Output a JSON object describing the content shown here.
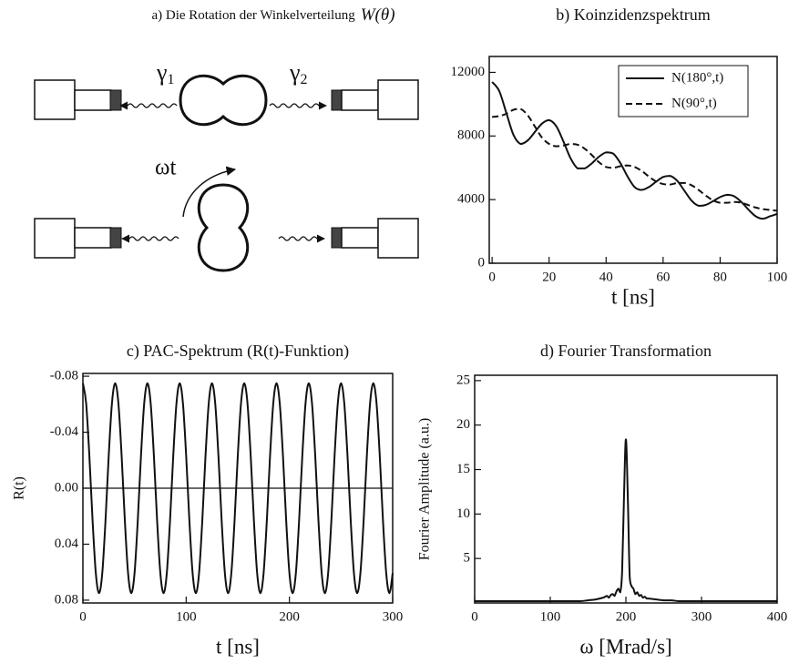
{
  "diagram": {
    "title": "a) Die Rotation der Winkelverteilung",
    "title_symbol": "W(θ)",
    "gamma_left": {
      "symbol": "γ",
      "subscript": "1"
    },
    "gamma_right": {
      "symbol": "γ",
      "subscript": "2"
    },
    "rotation_label": "ωt"
  },
  "chart_data": [
    {
      "type": "line",
      "title": "b) Koinzidenzspektrum",
      "xlabel": "t [ns]",
      "x": [
        0,
        2.5,
        5,
        7.5,
        10,
        12.5,
        15,
        17.5,
        20,
        22.5,
        25,
        27.5,
        30,
        32.5,
        35,
        37.5,
        40,
        42.5,
        45,
        47.5,
        50,
        52.5,
        55,
        57.5,
        60,
        62.5,
        65,
        67.5,
        70,
        72.5,
        75,
        77.5,
        80,
        82.5,
        85,
        87.5,
        90,
        92.5,
        95,
        97.5,
        100
      ],
      "series": [
        {
          "name": "N(180°,t)",
          "color": "#111111",
          "dash": "solid",
          "values": [
            11400,
            10830,
            9450,
            8070,
            7500,
            7720,
            8250,
            8780,
            9000,
            8620,
            7670,
            6610,
            5960,
            5960,
            6280,
            6700,
            6970,
            6890,
            6300,
            5460,
            4790,
            4610,
            4790,
            5120,
            5420,
            5490,
            5170,
            4550,
            3930,
            3610,
            3670,
            3900,
            4160,
            4300,
            4200,
            3840,
            3360,
            2950,
            2800,
            2950,
            3100
          ]
        },
        {
          "name": "N(90°,t)",
          "color": "#111111",
          "dash": "dashed",
          "values": [
            9200,
            9250,
            9400,
            9650,
            9700,
            9300,
            8600,
            7900,
            7500,
            7350,
            7400,
            7500,
            7450,
            7200,
            6800,
            6350,
            6050,
            6000,
            6100,
            6150,
            6050,
            5800,
            5450,
            5150,
            4980,
            4950,
            5050,
            5050,
            4900,
            4600,
            4250,
            3950,
            3800,
            3800,
            3850,
            3800,
            3650,
            3500,
            3400,
            3350,
            3300
          ]
        }
      ],
      "xlim": [
        -1,
        100
      ],
      "ylim": [
        0,
        13000
      ],
      "xticks": [
        0,
        20,
        40,
        60,
        80,
        100
      ],
      "yticks": [
        0,
        4000,
        8000,
        12000
      ],
      "legend": "upper right"
    },
    {
      "type": "line",
      "title": "c) PAC-Spektrum (R(t)-Funktion)",
      "xlabel": "t [ns]",
      "ylabel": "R(t)",
      "x": [
        0,
        3.125,
        6.25,
        9.375,
        12.5,
        15.625,
        18.75,
        21.875,
        25,
        28.125,
        31.25,
        34.375,
        37.5,
        40.625,
        43.75,
        46.875,
        50,
        53.125,
        56.25,
        59.375,
        62.5,
        65.625,
        68.75,
        71.875,
        75,
        78.125,
        81.25,
        84.375,
        87.5,
        90.625,
        93.75,
        96.875,
        100,
        103.125,
        106.25,
        109.375,
        112.5,
        115.625,
        118.75,
        121.875,
        125,
        128.125,
        131.25,
        134.375,
        137.5,
        140.625,
        143.75,
        146.875,
        150,
        153.125,
        156.25,
        159.375,
        162.5,
        165.625,
        168.75,
        171.875,
        175,
        178.125,
        181.25,
        184.375,
        187.5,
        190.625,
        193.75,
        196.875,
        200,
        203.125,
        206.25,
        209.375,
        212.5,
        215.625,
        218.75,
        221.875,
        225,
        228.125,
        231.25,
        234.375,
        237.5,
        240.625,
        243.75,
        246.875,
        250,
        253.125,
        256.25,
        259.375,
        262.5,
        265.625,
        268.75,
        271.875,
        275,
        278.125,
        281.25,
        284.375,
        287.5,
        290.625,
        293.75,
        296.875,
        300
      ],
      "series": [
        {
          "color": "#111111",
          "dash": "solid",
          "values": [
            -0.075,
            -0.0607,
            -0.0232,
            0.0232,
            0.0607,
            0.075,
            0.0607,
            0.0232,
            -0.0232,
            -0.0607,
            -0.075,
            -0.0607,
            -0.0232,
            0.0232,
            0.0607,
            0.075,
            0.0607,
            0.0232,
            -0.0232,
            -0.0607,
            -0.075,
            -0.0607,
            -0.0232,
            0.0232,
            0.0607,
            0.075,
            0.0607,
            0.0232,
            -0.0232,
            -0.0607,
            -0.075,
            -0.0607,
            -0.0232,
            0.0232,
            0.0607,
            0.075,
            0.0607,
            0.0232,
            -0.0232,
            -0.0607,
            -0.075,
            -0.0607,
            -0.0232,
            0.0232,
            0.0607,
            0.075,
            0.0607,
            0.0232,
            -0.0232,
            -0.0607,
            -0.075,
            -0.0607,
            -0.0232,
            0.0232,
            0.0607,
            0.075,
            0.0607,
            0.0232,
            -0.0232,
            -0.0607,
            -0.075,
            -0.0607,
            -0.0232,
            0.0232,
            0.0607,
            0.075,
            0.0607,
            0.0232,
            -0.0232,
            -0.0607,
            -0.075,
            -0.0607,
            -0.0232,
            0.0232,
            0.0607,
            0.075,
            0.0607,
            0.0232,
            -0.0232,
            -0.0607,
            -0.075,
            -0.0607,
            -0.0232,
            0.0232,
            0.0607,
            0.075,
            0.0607,
            0.0232,
            -0.0232,
            -0.0607,
            -0.075,
            -0.0607,
            -0.0232,
            0.0232,
            0.0607,
            0.075,
            0.0607
          ]
        }
      ],
      "xlim": [
        0,
        300
      ],
      "ylim": [
        -0.082,
        0.082
      ],
      "y_inverted": true,
      "zero_line": true,
      "xticks": [
        0,
        100,
        200,
        300
      ],
      "yticks": [
        -0.08,
        -0.04,
        {
          "value": 0,
          "label": "0.00"
        },
        0.04,
        0.08
      ]
    },
    {
      "type": "line",
      "title": "d) Fourier Transformation",
      "xlabel": "ω [Mrad/s]",
      "ylabel": "Fourier Amplitude (a.u.)",
      "x": [
        0,
        10,
        20,
        30,
        40,
        50,
        60,
        70,
        80,
        90,
        100,
        110,
        120,
        130,
        140,
        150,
        160,
        170,
        172.5,
        175,
        177.5,
        180,
        182.5,
        185,
        187.5,
        190,
        192.5,
        195,
        197.5,
        200,
        202.5,
        205,
        207.5,
        210,
        212.5,
        215,
        217.5,
        220,
        222.5,
        225,
        227.5,
        230,
        240,
        250,
        260,
        270,
        280,
        290,
        300,
        310,
        320,
        330,
        340,
        350,
        360,
        370,
        380,
        390,
        400
      ],
      "series": [
        {
          "color": "#111111",
          "dash": "solid",
          "values": [
            0.2,
            0.2,
            0.2,
            0.2,
            0.2,
            0.2,
            0.2,
            0.2,
            0.2,
            0.2,
            0.2,
            0.2,
            0.2,
            0.2,
            0.2,
            0.3,
            0.4,
            0.6,
            0.7,
            0.8,
            0.6,
            0.9,
            1.0,
            0.8,
            1.3,
            1.6,
            1.2,
            3.5,
            12,
            18.4,
            12,
            3,
            1.9,
            1.6,
            1.0,
            1.2,
            0.8,
            0.9,
            0.6,
            0.7,
            0.5,
            0.5,
            0.4,
            0.3,
            0.3,
            0.2,
            0.2,
            0.2,
            0.2,
            0.2,
            0.2,
            0.2,
            0.2,
            0.2,
            0.2,
            0.2,
            0.2,
            0.2,
            0.2
          ]
        }
      ],
      "xlim": [
        0,
        400
      ],
      "ylim": [
        0,
        25.6
      ],
      "xticks": [
        0,
        100,
        200,
        300,
        400
      ],
      "yticks": [
        5,
        10,
        15,
        20,
        25
      ]
    }
  ]
}
